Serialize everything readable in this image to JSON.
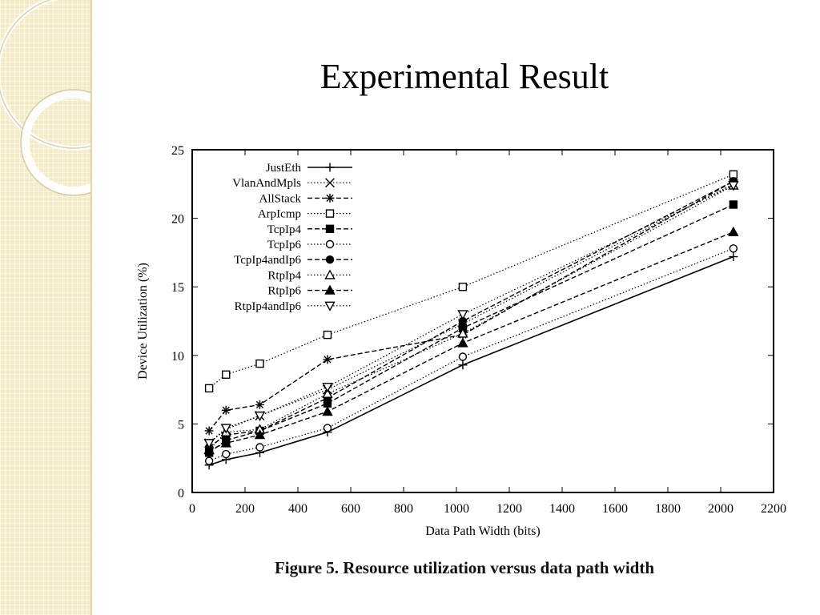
{
  "slide": {
    "title": "Experimental Result",
    "caption": "Figure 5. Resource utilization versus data path width"
  },
  "colors": {
    "sidebar": "#f4ebc9",
    "ink": "#000000"
  },
  "chart_data": {
    "type": "line",
    "title": "",
    "xlabel": "Data Path Width (bits)",
    "ylabel": "Device Utilization (%)",
    "xlim": [
      0,
      2200
    ],
    "ylim": [
      0,
      25
    ],
    "xticks": [
      0,
      200,
      400,
      600,
      800,
      1000,
      1200,
      1400,
      1600,
      1800,
      2000,
      2200
    ],
    "yticks": [
      0,
      5,
      10,
      15,
      20,
      25
    ],
    "grid": false,
    "legend_position": "top-left",
    "x": [
      64,
      128,
      256,
      512,
      1024,
      2048
    ],
    "series": [
      {
        "name": "JustEth",
        "values": [
          2.0,
          2.4,
          2.9,
          4.4,
          9.3,
          17.2
        ],
        "marker": "plus",
        "dash": "solid"
      },
      {
        "name": "VlanAndMpls",
        "values": [
          3.6,
          4.6,
          5.6,
          7.5,
          12.3,
          22.5
        ],
        "marker": "cross",
        "dash": "dotted"
      },
      {
        "name": "AllStack",
        "values": [
          4.5,
          6.0,
          6.4,
          9.7,
          11.5,
          22.7
        ],
        "marker": "star",
        "dash": "dashed"
      },
      {
        "name": "ArpIcmp",
        "values": [
          7.6,
          8.6,
          9.4,
          11.5,
          15.0,
          23.2
        ],
        "marker": "square-open",
        "dash": "dotted"
      },
      {
        "name": "TcpIp4",
        "values": [
          2.9,
          3.8,
          4.5,
          6.5,
          12.0,
          21.0
        ],
        "marker": "square-filled",
        "dash": "dashed"
      },
      {
        "name": "TcpIp6",
        "values": [
          2.3,
          2.8,
          3.3,
          4.7,
          9.9,
          17.8
        ],
        "marker": "circle-open",
        "dash": "dotted"
      },
      {
        "name": "TcpIp4andIp6",
        "values": [
          3.3,
          4.2,
          4.5,
          6.9,
          12.5,
          22.7
        ],
        "marker": "circle-filled",
        "dash": "dashed"
      },
      {
        "name": "RtpIp4",
        "values": [
          3.1,
          4.4,
          4.6,
          7.2,
          11.6,
          22.4
        ],
        "marker": "triangle-open",
        "dash": "dotted"
      },
      {
        "name": "RtpIp6",
        "values": [
          3.1,
          3.6,
          4.2,
          5.9,
          10.9,
          19.0
        ],
        "marker": "triangle-filled",
        "dash": "dashed"
      },
      {
        "name": "RtpIp4andIp6",
        "values": [
          3.6,
          4.7,
          5.6,
          7.7,
          13.0,
          22.4
        ],
        "marker": "triangle-down-open",
        "dash": "dotted"
      }
    ]
  }
}
